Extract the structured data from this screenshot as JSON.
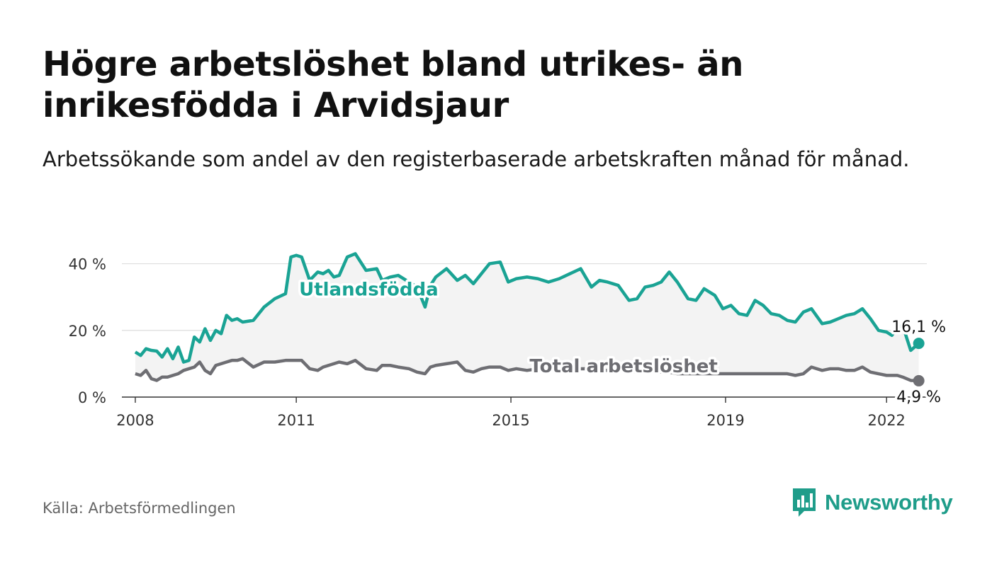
{
  "header": {
    "title": "Högre arbetslöshet bland utrikes- än inrikesfödda i Arvidsjaur",
    "subtitle": "Arbetssökande som andel av den registerbaserade arbetskraften månad för månad."
  },
  "footer": {
    "source": "Källa: Arbetsförmedlingen",
    "brand": "Newsworthy"
  },
  "colors": {
    "foreign": "#1aa394",
    "total": "#6e6e73",
    "band": "#f3f3f3",
    "grid": "#dddddd",
    "brand": "#1f9d8a"
  },
  "chart_data": {
    "type": "line",
    "title": "Högre arbetslöshet bland utrikes- än inrikesfödda i Arvidsjaur",
    "xlabel": "",
    "ylabel": "",
    "xlim": [
      2007.75,
      2022.75
    ],
    "ylim": [
      0,
      45
    ],
    "x_ticks": [
      2008,
      2011,
      2015,
      2019,
      2022
    ],
    "y_ticks": [
      0,
      20,
      40
    ],
    "y_tick_labels": [
      "0 %",
      "20 %",
      "40 %"
    ],
    "grid": true,
    "legend": "inline labels",
    "series": [
      {
        "name": "Utlandsfödda",
        "label": "Utlandsfödda",
        "end_label": "16,1 %",
        "x": [
          2008.0,
          2008.1,
          2008.2,
          2008.3,
          2008.4,
          2008.5,
          2008.6,
          2008.7,
          2008.8,
          2008.9,
          2009.0,
          2009.1,
          2009.2,
          2009.3,
          2009.4,
          2009.5,
          2009.6,
          2009.7,
          2009.8,
          2009.9,
          2010.0,
          2010.2,
          2010.4,
          2010.6,
          2010.8,
          2010.9,
          2011.0,
          2011.1,
          2011.25,
          2011.4,
          2011.5,
          2011.6,
          2011.7,
          2011.8,
          2011.95,
          2012.1,
          2012.3,
          2012.5,
          2012.6,
          2012.75,
          2012.9,
          2013.1,
          2013.25,
          2013.4,
          2013.5,
          2013.6,
          2013.8,
          2014.0,
          2014.15,
          2014.3,
          2014.45,
          2014.6,
          2014.8,
          2014.95,
          2015.1,
          2015.3,
          2015.5,
          2015.7,
          2015.9,
          2016.1,
          2016.3,
          2016.5,
          2016.65,
          2016.8,
          2017.0,
          2017.2,
          2017.35,
          2017.5,
          2017.65,
          2017.8,
          2017.95,
          2018.1,
          2018.3,
          2018.45,
          2018.6,
          2018.8,
          2018.95,
          2019.1,
          2019.25,
          2019.4,
          2019.55,
          2019.7,
          2019.85,
          2020.0,
          2020.15,
          2020.3,
          2020.45,
          2020.6,
          2020.8,
          2020.95,
          2021.1,
          2021.25,
          2021.4,
          2021.55,
          2021.7,
          2021.85,
          2022.0,
          2022.1,
          2022.2,
          2022.3,
          2022.45,
          2022.6
        ],
        "values": [
          13.5,
          12.5,
          14.5,
          14.0,
          13.8,
          12.0,
          14.5,
          11.5,
          15.0,
          10.5,
          11.0,
          18.0,
          16.5,
          20.5,
          17.0,
          20.0,
          19.0,
          24.5,
          23.0,
          23.5,
          22.5,
          23.0,
          27.0,
          29.5,
          31.0,
          42.0,
          42.5,
          42.0,
          35.0,
          37.5,
          37.0,
          38.0,
          36.0,
          36.5,
          42.0,
          43.0,
          38.0,
          38.5,
          35.0,
          36.0,
          36.5,
          34.5,
          33.0,
          27.0,
          33.5,
          36.0,
          38.5,
          35.0,
          36.5,
          34.0,
          37.0,
          40.0,
          40.5,
          34.5,
          35.5,
          36.0,
          35.5,
          34.5,
          35.5,
          37.0,
          38.5,
          33.0,
          35.0,
          34.5,
          33.5,
          29.0,
          29.5,
          33.0,
          33.5,
          34.5,
          37.5,
          34.5,
          29.5,
          29.0,
          32.5,
          30.5,
          26.5,
          27.5,
          25.0,
          24.5,
          29.0,
          27.5,
          25.0,
          24.5,
          23.0,
          22.5,
          25.5,
          26.5,
          22.0,
          22.5,
          23.5,
          24.5,
          25.0,
          26.5,
          23.5,
          20.0,
          19.5,
          18.5,
          21.0,
          21.5,
          14.0,
          16.1
        ]
      },
      {
        "name": "Total arbetslöshet",
        "label": "Total arbetslöshet",
        "end_label": "4,9 %",
        "x": [
          2008.0,
          2008.1,
          2008.2,
          2008.3,
          2008.4,
          2008.5,
          2008.6,
          2008.7,
          2008.8,
          2008.9,
          2009.0,
          2009.1,
          2009.2,
          2009.3,
          2009.4,
          2009.5,
          2009.6,
          2009.7,
          2009.8,
          2009.9,
          2010.0,
          2010.2,
          2010.4,
          2010.6,
          2010.8,
          2010.9,
          2011.0,
          2011.1,
          2011.25,
          2011.4,
          2011.5,
          2011.6,
          2011.7,
          2011.8,
          2011.95,
          2012.1,
          2012.3,
          2012.5,
          2012.6,
          2012.75,
          2012.9,
          2013.1,
          2013.25,
          2013.4,
          2013.5,
          2013.6,
          2013.8,
          2014.0,
          2014.15,
          2014.3,
          2014.45,
          2014.6,
          2014.8,
          2014.95,
          2015.1,
          2015.3,
          2015.5,
          2015.7,
          2015.9,
          2016.1,
          2016.3,
          2016.5,
          2016.65,
          2016.8,
          2017.0,
          2017.2,
          2017.35,
          2017.5,
          2017.65,
          2017.8,
          2017.95,
          2018.1,
          2018.3,
          2018.45,
          2018.6,
          2018.8,
          2018.95,
          2019.1,
          2019.25,
          2019.4,
          2019.55,
          2019.7,
          2019.85,
          2020.0,
          2020.15,
          2020.3,
          2020.45,
          2020.6,
          2020.8,
          2020.95,
          2021.1,
          2021.25,
          2021.4,
          2021.55,
          2021.7,
          2021.85,
          2022.0,
          2022.1,
          2022.2,
          2022.3,
          2022.45,
          2022.6
        ],
        "values": [
          7.0,
          6.5,
          8.0,
          5.5,
          5.0,
          6.0,
          6.0,
          6.5,
          7.0,
          8.0,
          8.5,
          9.0,
          10.5,
          8.0,
          7.0,
          9.5,
          10.0,
          10.5,
          11.0,
          11.0,
          11.5,
          9.0,
          10.5,
          10.5,
          11.0,
          11.0,
          11.0,
          11.0,
          8.5,
          8.0,
          9.0,
          9.5,
          10.0,
          10.5,
          10.0,
          11.0,
          8.5,
          8.0,
          9.5,
          9.5,
          9.0,
          8.5,
          7.5,
          7.0,
          9.0,
          9.5,
          10.0,
          10.5,
          8.0,
          7.5,
          8.5,
          9.0,
          9.0,
          8.0,
          8.5,
          8.0,
          8.5,
          8.5,
          8.5,
          8.0,
          8.5,
          8.5,
          8.0,
          8.0,
          8.0,
          8.0,
          7.5,
          7.5,
          7.5,
          7.5,
          7.5,
          7.0,
          7.0,
          7.0,
          7.0,
          7.0,
          7.0,
          7.0,
          7.0,
          7.0,
          7.0,
          7.0,
          7.0,
          7.0,
          7.0,
          6.5,
          7.0,
          9.0,
          8.0,
          8.5,
          8.5,
          8.0,
          8.0,
          9.0,
          7.5,
          7.0,
          6.5,
          6.5,
          6.5,
          6.0,
          5.0,
          4.9
        ]
      }
    ]
  }
}
